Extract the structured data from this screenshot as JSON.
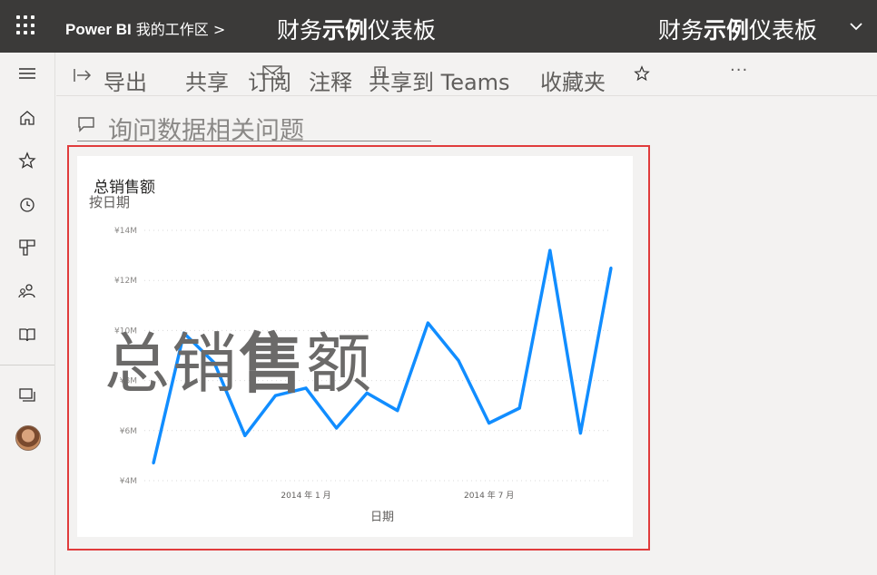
{
  "topbar": {
    "app_name": "Power BI",
    "workspace": "我的工作区",
    "breadcrumb_sep": ">",
    "center_title": {
      "a": "财务",
      "b": "示例",
      "c": "仪表板"
    },
    "right_title": {
      "a": "财务",
      "b": "示例",
      "c": "仪表板"
    }
  },
  "actions": {
    "export": "导出",
    "share": "共享",
    "subscribe": "订阅",
    "comment": "注释",
    "share_teams": "共享到 Teams",
    "favorite": "收藏夹",
    "more": "···"
  },
  "qa": {
    "placeholder": "询问数据相关问题"
  },
  "tile": {
    "title": "总销售额",
    "subtitle": "按日期",
    "watermark": {
      "a": "总销",
      "b": "售",
      "c": "额"
    }
  },
  "chart_data": {
    "type": "line",
    "title": "总销售额",
    "subtitle": "按日期",
    "xlabel": "日期",
    "ylabel": "",
    "y_ticks": [
      "¥4M",
      "¥6M",
      "¥8M",
      "¥10M",
      "¥12M",
      "¥14M"
    ],
    "y_tick_values": [
      4,
      6,
      8,
      10,
      12,
      14
    ],
    "x_ticks": [
      "2014 年 1 月",
      "2014 年 7 月"
    ],
    "x_tick_index": [
      5,
      11
    ],
    "ylim": [
      4,
      14
    ],
    "grid": true,
    "color": "#118DFF",
    "series": [
      {
        "values": [
          4.7,
          9.9,
          8.7,
          5.8,
          7.4,
          7.7,
          6.1,
          7.5,
          6.8,
          10.3,
          8.8,
          6.3,
          6.9,
          13.2,
          5.9,
          12.5
        ]
      }
    ]
  },
  "colors": {
    "topbar": "#3b3a39",
    "accent_line": "#118DFF",
    "highlight": "#e03c3c"
  }
}
